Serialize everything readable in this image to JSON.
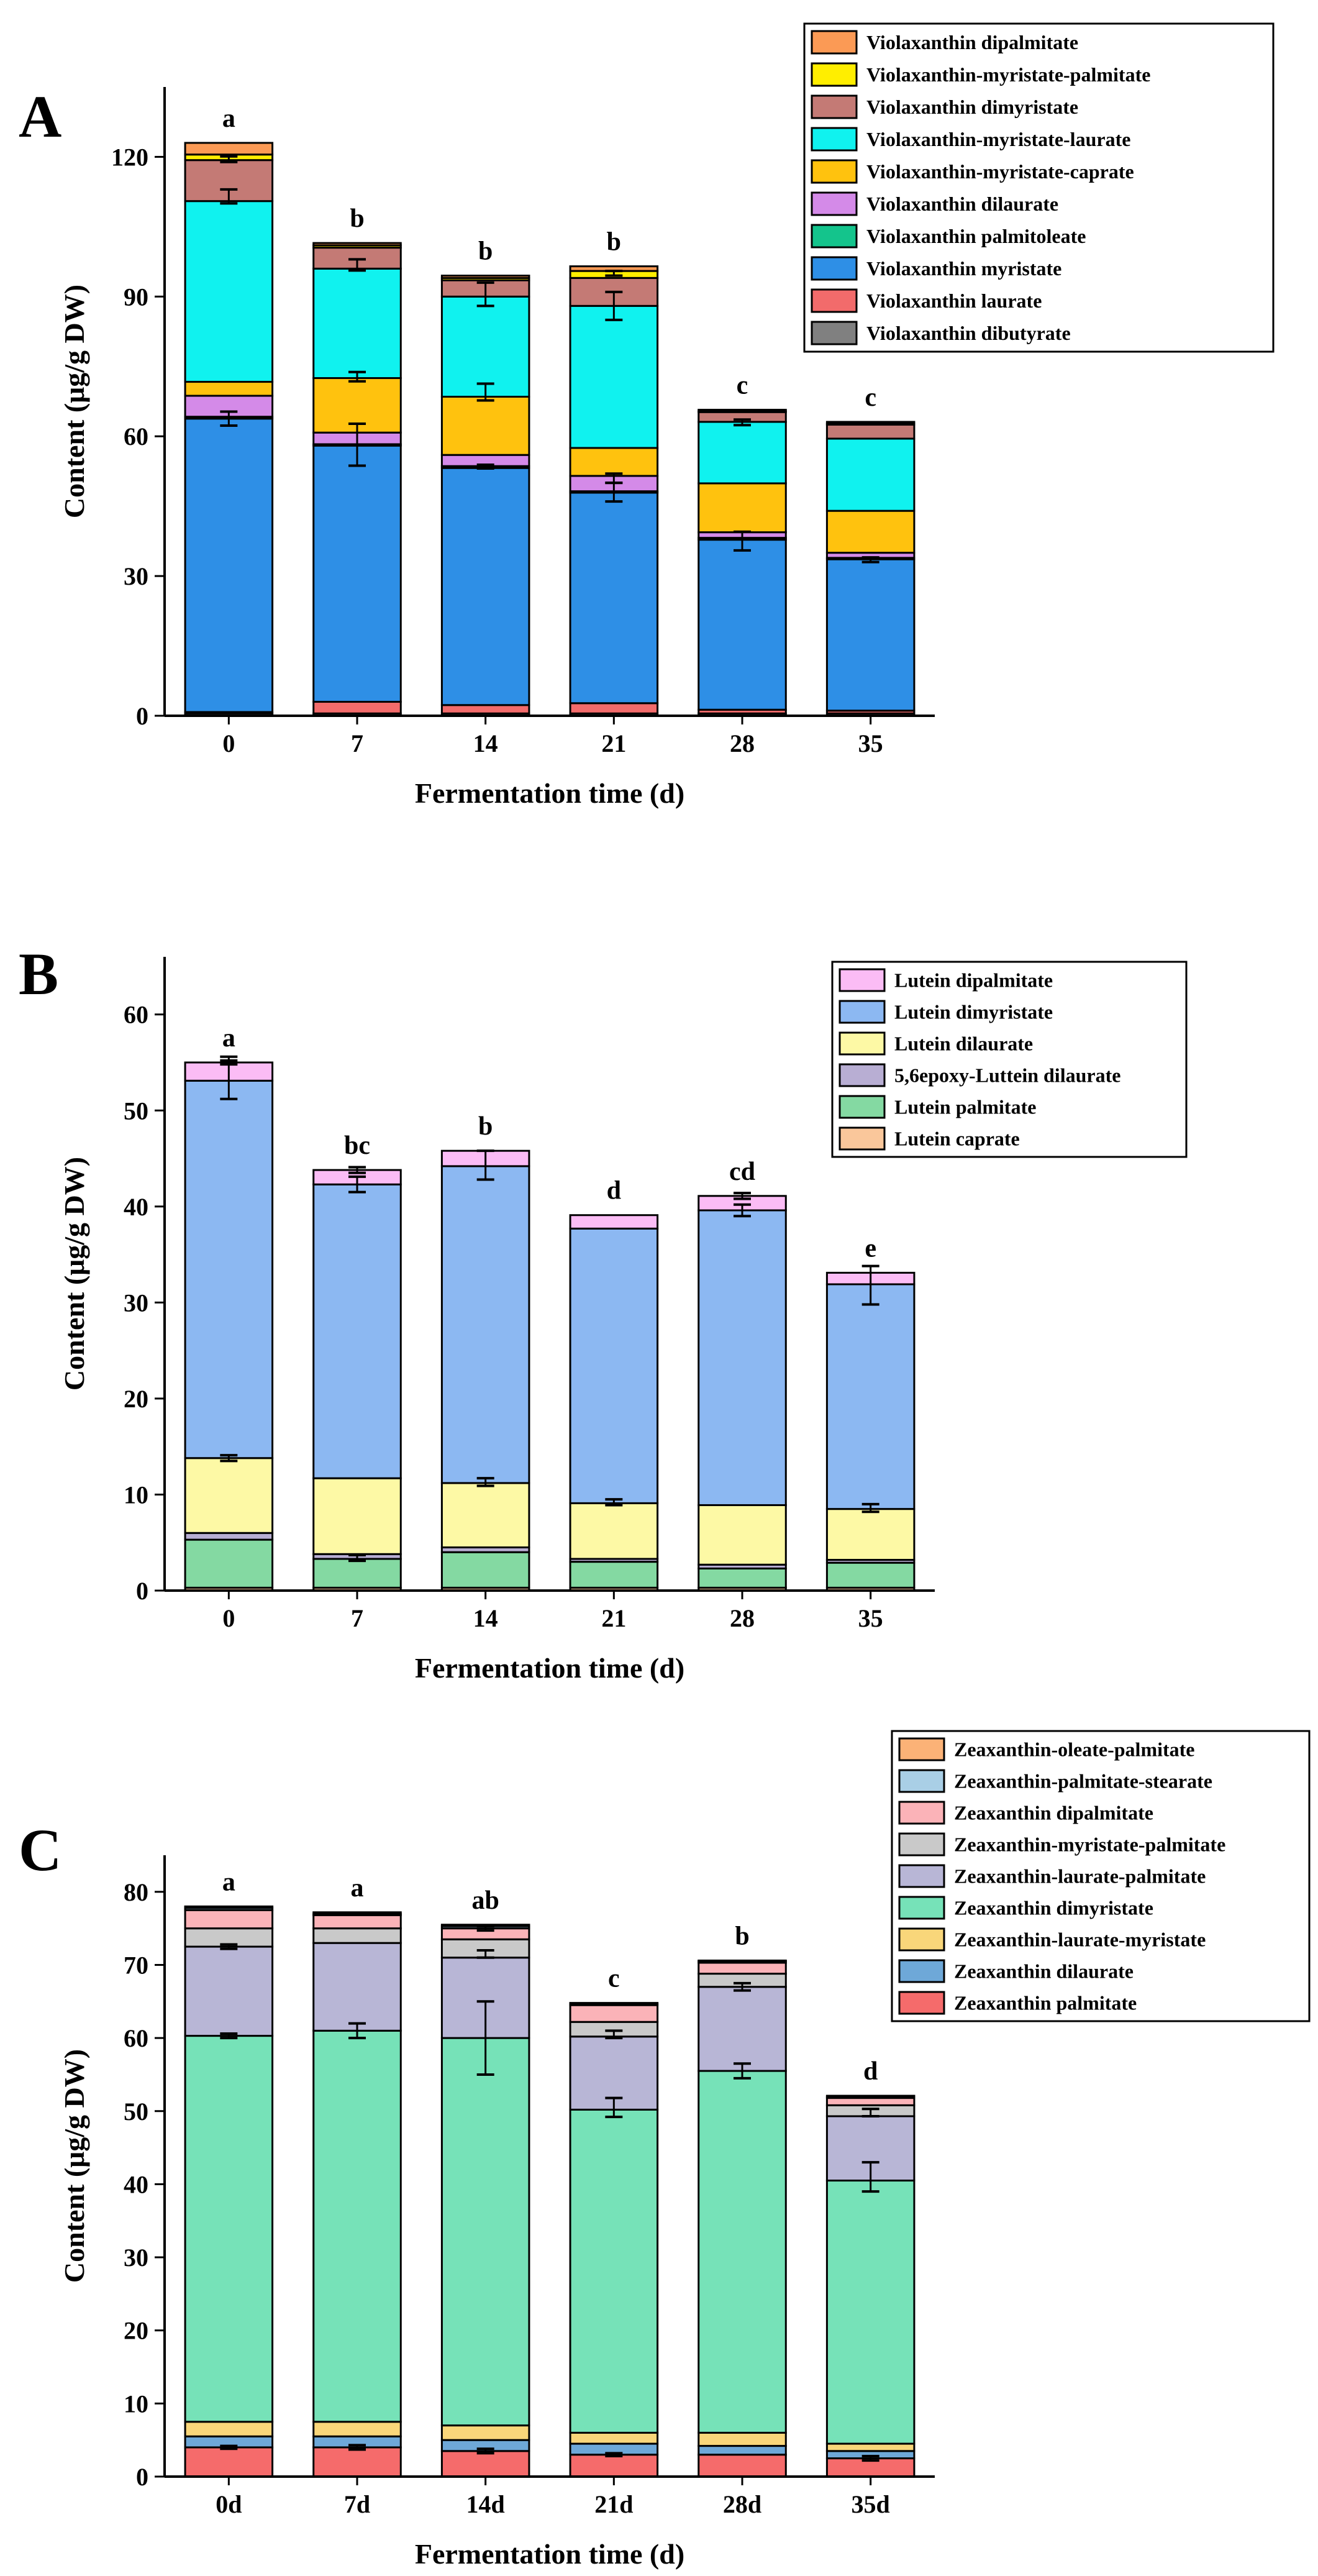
{
  "chart_data": [
    {
      "type": "bar",
      "stacked": true,
      "panel_label": "A",
      "xlabel": "Fermentation time (d)",
      "ylabel": "Content (μg/g DW)",
      "categories": [
        "0",
        "7",
        "14",
        "21",
        "28",
        "35"
      ],
      "ylim": [
        0,
        135
      ],
      "yticks": [
        0,
        30,
        60,
        90,
        120
      ],
      "significance": [
        "a",
        "b",
        "b",
        "b",
        "c",
        "c"
      ],
      "grid": false,
      "legend_position": "top-right",
      "series": [
        {
          "name": "Violaxanthin dibutyrate",
          "color": "#808080",
          "values": [
            0.5,
            0.5,
            0.5,
            0.5,
            0.5,
            0.5
          ]
        },
        {
          "name": "Violaxanthin laurate",
          "color": "#f26b6b",
          "values": [
            0.3,
            2.5,
            1.8,
            2.2,
            0.8,
            0.6
          ]
        },
        {
          "name": "Violaxanthin myristate",
          "color": "#2e8fe6",
          "values": [
            63.0,
            55.0,
            50.9,
            45.2,
            36.5,
            32.5
          ]
        },
        {
          "name": "Violaxanthin palmitoleate",
          "color": "#14c48c",
          "values": [
            0.4,
            0.3,
            0.4,
            0.3,
            0.4,
            0.3
          ]
        },
        {
          "name": "Violaxanthin dilaurate",
          "color": "#d48ae8",
          "values": [
            4.5,
            2.5,
            2.4,
            3.3,
            1.2,
            1.1
          ]
        },
        {
          "name": "Violaxanthin-myristate-caprate",
          "color": "#ffc20e",
          "values": [
            3.0,
            11.7,
            12.5,
            6.0,
            10.5,
            9.0
          ]
        },
        {
          "name": "Violaxanthin-myristate-laurate",
          "color": "#10f2ef",
          "values": [
            38.8,
            23.5,
            21.5,
            30.5,
            13.2,
            15.5
          ]
        },
        {
          "name": "Violaxanthin dimyristate",
          "color": "#c47a75",
          "values": [
            8.8,
            4.5,
            3.5,
            6.0,
            2.1,
            3.0
          ]
        },
        {
          "name": "Violaxanthin-myristate-palmitate",
          "color": "#ffee00",
          "values": [
            1.2,
            0.5,
            0.5,
            1.5,
            0.2,
            0.3
          ]
        },
        {
          "name": "Violaxanthin dipalmitate",
          "color": "#fb9a55",
          "values": [
            2.5,
            0.5,
            0.5,
            1.0,
            0.3,
            0.3
          ]
        }
      ],
      "error_bars": [
        {
          "category": "0",
          "at": 63.8,
          "err": 1.5
        },
        {
          "category": "0",
          "at": 111.5,
          "err": 1.5
        },
        {
          "category": "0",
          "at": 119.5,
          "err": 0.6
        },
        {
          "category": "7",
          "at": 58.2,
          "err": 4.5
        },
        {
          "category": "7",
          "at": 72.8,
          "err": 1.0
        },
        {
          "category": "7",
          "at": 96.8,
          "err": 1.2
        },
        {
          "category": "14",
          "at": 53.5,
          "err": 0.4
        },
        {
          "category": "14",
          "at": 69.5,
          "err": 1.8
        },
        {
          "category": "14",
          "at": 90.5,
          "err": 2.5
        },
        {
          "category": "21",
          "at": 48.0,
          "err": 2.0
        },
        {
          "category": "21",
          "at": 51.0,
          "err": 1.0
        },
        {
          "category": "21",
          "at": 88.0,
          "err": 3.0
        },
        {
          "category": "21",
          "at": 95.0,
          "err": 0.5
        },
        {
          "category": "28",
          "at": 37.5,
          "err": 2.0
        },
        {
          "category": "28",
          "at": 63.0,
          "err": 0.6
        },
        {
          "category": "35",
          "at": 33.5,
          "err": 0.5
        }
      ]
    },
    {
      "type": "bar",
      "stacked": true,
      "panel_label": "B",
      "xlabel": "Fermentation time (d)",
      "ylabel": "Content (μg/g DW)",
      "categories": [
        "0",
        "7",
        "14",
        "21",
        "28",
        "35"
      ],
      "ylim": [
        0,
        66
      ],
      "yticks": [
        0,
        10,
        20,
        30,
        40,
        50,
        60
      ],
      "significance": [
        "a",
        "bc",
        "b",
        "d",
        "cd",
        "e"
      ],
      "grid": false,
      "legend_position": "top-right",
      "series": [
        {
          "name": "Lutein caprate",
          "color": "#fac79b",
          "values": [
            0.3,
            0.3,
            0.3,
            0.3,
            0.3,
            0.3
          ]
        },
        {
          "name": "Lutein palmitate",
          "color": "#84d9a2",
          "values": [
            5.0,
            3.0,
            3.7,
            2.7,
            2.0,
            2.6
          ]
        },
        {
          "name": "5,6epoxy-Luttein dilaurate",
          "color": "#b8aed3",
          "values": [
            0.7,
            0.5,
            0.5,
            0.3,
            0.4,
            0.3
          ]
        },
        {
          "name": "Lutein dilaurate",
          "color": "#fdf9a5",
          "values": [
            7.8,
            7.9,
            6.7,
            5.8,
            6.2,
            5.3
          ]
        },
        {
          "name": "Lutein dimyristate",
          "color": "#8cb8f2",
          "values": [
            39.3,
            30.6,
            33.0,
            28.6,
            30.7,
            23.4
          ]
        },
        {
          "name": "Lutein dipalmitate",
          "color": "#fbbcf5",
          "values": [
            1.9,
            1.5,
            1.6,
            1.4,
            1.5,
            1.2
          ]
        }
      ],
      "error_bars": [
        {
          "category": "0",
          "at": 13.8,
          "err": 0.3
        },
        {
          "category": "0",
          "at": 53.2,
          "err": 2.0
        },
        {
          "category": "0",
          "at": 55.2,
          "err": 0.4
        },
        {
          "category": "7",
          "at": 3.4,
          "err": 0.3
        },
        {
          "category": "7",
          "at": 42.3,
          "err": 0.8
        },
        {
          "category": "7",
          "at": 43.8,
          "err": 0.3
        },
        {
          "category": "14",
          "at": 11.3,
          "err": 0.4
        },
        {
          "category": "14",
          "at": 44.3,
          "err": 1.5
        },
        {
          "category": "21",
          "at": 9.2,
          "err": 0.3
        },
        {
          "category": "28",
          "at": 39.6,
          "err": 0.6
        },
        {
          "category": "28",
          "at": 41.1,
          "err": 0.3
        },
        {
          "category": "35",
          "at": 8.6,
          "err": 0.4
        },
        {
          "category": "35",
          "at": 31.8,
          "err": 2.0
        }
      ]
    },
    {
      "type": "bar",
      "stacked": true,
      "panel_label": "C",
      "xlabel": "Fermentation time (d)",
      "ylabel": "Content (μg/g DW)",
      "categories": [
        "0d",
        "7d",
        "14d",
        "21d",
        "28d",
        "35d"
      ],
      "ylim": [
        0,
        85
      ],
      "yticks": [
        0,
        10,
        20,
        30,
        40,
        50,
        60,
        70,
        80
      ],
      "significance": [
        "a",
        "a",
        "ab",
        "c",
        "b",
        "d"
      ],
      "grid": false,
      "legend_position": "top-right",
      "series": [
        {
          "name": "Zeaxanthin palmitate",
          "color": "#f56b6b",
          "values": [
            4.0,
            4.0,
            3.5,
            3.0,
            3.0,
            2.5
          ]
        },
        {
          "name": "Zeaxanthin dilaurate",
          "color": "#6ea8d8",
          "values": [
            1.5,
            1.5,
            1.5,
            1.5,
            1.2,
            1.0
          ]
        },
        {
          "name": "Zeaxanthin-laurate-myristate",
          "color": "#f9d67a",
          "values": [
            2.0,
            2.0,
            2.0,
            1.5,
            1.8,
            1.0
          ]
        },
        {
          "name": "Zeaxanthin dimyristate",
          "color": "#76e2b8",
          "values": [
            52.8,
            53.5,
            53.0,
            44.2,
            49.5,
            36.0
          ]
        },
        {
          "name": "Zeaxanthin-laurate-palmitate",
          "color": "#b8b6d6",
          "values": [
            12.2,
            12.0,
            11.0,
            10.0,
            11.5,
            8.8
          ]
        },
        {
          "name": "Zeaxanthin-myristate-palmitate",
          "color": "#c9c9c9",
          "values": [
            2.5,
            2.0,
            2.5,
            2.0,
            1.8,
            1.5
          ]
        },
        {
          "name": "Zeaxanthin dipalmitate",
          "color": "#fbb3b8",
          "values": [
            2.5,
            1.8,
            1.5,
            2.3,
            1.5,
            1.0
          ]
        },
        {
          "name": "Zeaxanthin-palmitate-stearate",
          "color": "#a9cfe6",
          "values": [
            0.3,
            0.2,
            0.3,
            0.2,
            0.2,
            0.2
          ]
        },
        {
          "name": "Zeaxanthin-oleate-palmitate",
          "color": "#fbb277",
          "values": [
            0.2,
            0.2,
            0.2,
            0.1,
            0.1,
            0.1
          ]
        }
      ],
      "error_bars": [
        {
          "category": "0d",
          "at": 4.0,
          "err": 0.2
        },
        {
          "category": "0d",
          "at": 60.3,
          "err": 0.3
        },
        {
          "category": "0d",
          "at": 72.5,
          "err": 0.3
        },
        {
          "category": "7d",
          "at": 4.0,
          "err": 0.3
        },
        {
          "category": "7d",
          "at": 61.0,
          "err": 1.0
        },
        {
          "category": "14d",
          "at": 3.5,
          "err": 0.3
        },
        {
          "category": "14d",
          "at": 60.0,
          "err": 5.0
        },
        {
          "category": "14d",
          "at": 71.5,
          "err": 0.5
        },
        {
          "category": "14d",
          "at": 75.0,
          "err": 0.3
        },
        {
          "category": "21d",
          "at": 3.0,
          "err": 0.2
        },
        {
          "category": "21d",
          "at": 50.5,
          "err": 1.3
        },
        {
          "category": "21d",
          "at": 60.5,
          "err": 0.5
        },
        {
          "category": "28d",
          "at": 55.5,
          "err": 1.0
        },
        {
          "category": "28d",
          "at": 67.0,
          "err": 0.5
        },
        {
          "category": "35d",
          "at": 2.5,
          "err": 0.3
        },
        {
          "category": "35d",
          "at": 41.0,
          "err": 2.0
        },
        {
          "category": "35d",
          "at": 49.8,
          "err": 0.5
        }
      ]
    }
  ]
}
